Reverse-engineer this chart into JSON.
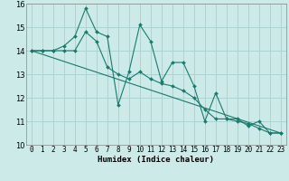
{
  "xlabel": "Humidex (Indice chaleur)",
  "xlim": [
    -0.5,
    23.5
  ],
  "ylim": [
    10,
    16
  ],
  "yticks": [
    10,
    11,
    12,
    13,
    14,
    15,
    16
  ],
  "xticks": [
    0,
    1,
    2,
    3,
    4,
    5,
    6,
    7,
    8,
    9,
    10,
    11,
    12,
    13,
    14,
    15,
    16,
    17,
    18,
    19,
    20,
    21,
    22,
    23
  ],
  "bg_color": "#cceae8",
  "grid_color": "#aad4d2",
  "line_color": "#1a7a6e",
  "line1_x": [
    0,
    1,
    2,
    3,
    4,
    5,
    6,
    7,
    8,
    9,
    10,
    11,
    12,
    13,
    14,
    15,
    16,
    17,
    18,
    19,
    20,
    21,
    22,
    23
  ],
  "line1_y": [
    14.0,
    14.0,
    14.0,
    14.2,
    14.6,
    15.8,
    14.8,
    14.6,
    11.7,
    13.1,
    15.1,
    14.4,
    12.7,
    13.5,
    13.5,
    12.5,
    11.0,
    12.2,
    11.1,
    11.1,
    10.8,
    11.0,
    10.5,
    10.5
  ],
  "line2_x": [
    0,
    1,
    2,
    3,
    4,
    5,
    6,
    7,
    8,
    9,
    10,
    11,
    12,
    13,
    14,
    15,
    16,
    17,
    18,
    19,
    20,
    21,
    22,
    23
  ],
  "line2_y": [
    14.0,
    14.0,
    14.0,
    14.0,
    14.0,
    14.8,
    14.4,
    13.3,
    13.0,
    12.8,
    13.1,
    12.8,
    12.6,
    12.5,
    12.3,
    12.0,
    11.5,
    11.1,
    11.1,
    11.0,
    10.9,
    10.7,
    10.5,
    10.5
  ],
  "line3_x": [
    0,
    23
  ],
  "line3_y": [
    14.0,
    10.5
  ],
  "tick_fontsize": 5.5,
  "xlabel_fontsize": 6.5
}
